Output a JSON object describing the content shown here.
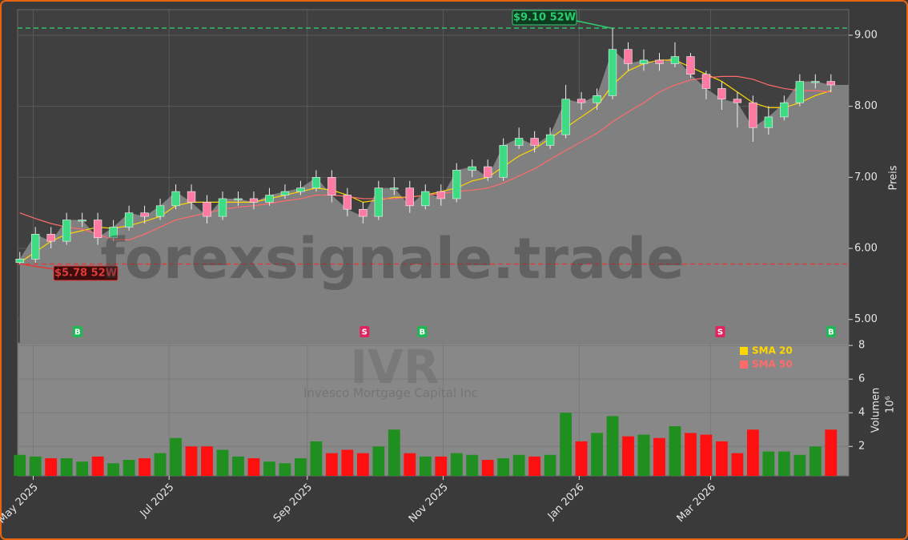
{
  "chart_data": {
    "type": "candlestick",
    "title": "IVR",
    "subtitle": "Invesco Mortgage Capital Inc",
    "watermark": "forexsignale.trade",
    "ylabel": "Preis",
    "x": [
      0,
      1,
      2,
      3,
      4,
      5,
      6,
      7,
      8,
      9,
      10,
      11,
      12,
      13,
      14,
      15,
      16,
      17,
      18,
      19,
      20,
      21,
      22,
      23,
      24,
      25,
      26,
      27,
      28,
      29,
      30,
      31,
      32,
      33,
      34,
      35,
      36,
      37,
      38,
      39,
      40,
      41,
      42,
      43,
      44,
      45,
      46,
      47,
      48,
      49,
      50,
      51,
      52
    ],
    "open": [
      5.8,
      5.85,
      6.2,
      6.1,
      6.4,
      6.4,
      6.15,
      6.3,
      6.5,
      6.45,
      6.6,
      6.8,
      6.65,
      6.45,
      6.7,
      6.7,
      6.65,
      6.75,
      6.8,
      6.85,
      7.0,
      6.75,
      6.55,
      6.45,
      6.85,
      6.85,
      6.6,
      6.8,
      6.7,
      7.1,
      7.15,
      7.0,
      7.45,
      7.55,
      7.45,
      7.6,
      8.1,
      8.05,
      8.15,
      8.8,
      8.6,
      8.65,
      8.6,
      8.7,
      8.45,
      8.25,
      8.1,
      8.05,
      7.7,
      7.85,
      8.05,
      8.35,
      8.35
    ],
    "high": [
      5.95,
      6.3,
      6.3,
      6.5,
      6.5,
      6.5,
      6.4,
      6.6,
      6.6,
      6.7,
      6.9,
      6.9,
      6.75,
      6.8,
      6.8,
      6.8,
      6.85,
      6.9,
      6.95,
      7.1,
      7.1,
      6.85,
      6.65,
      6.95,
      7.0,
      6.95,
      6.9,
      6.9,
      7.2,
      7.25,
      7.25,
      7.55,
      7.7,
      7.65,
      7.7,
      8.3,
      8.2,
      8.25,
      9.1,
      8.9,
      8.8,
      8.75,
      8.9,
      8.75,
      8.5,
      8.35,
      8.2,
      8.15,
      8.0,
      8.15,
      8.45,
      8.45,
      8.45
    ],
    "low": [
      5.78,
      5.8,
      6.0,
      6.05,
      6.3,
      6.05,
      6.1,
      6.25,
      6.35,
      6.4,
      6.55,
      6.55,
      6.35,
      6.4,
      6.6,
      6.55,
      6.6,
      6.7,
      6.75,
      6.8,
      6.65,
      6.45,
      6.35,
      6.4,
      6.75,
      6.5,
      6.55,
      6.6,
      6.65,
      7.0,
      6.95,
      6.95,
      7.4,
      7.35,
      7.4,
      7.55,
      7.95,
      7.95,
      8.1,
      8.5,
      8.5,
      8.5,
      8.55,
      8.4,
      8.1,
      7.95,
      7.7,
      7.5,
      7.6,
      7.8,
      8.0,
      8.25,
      8.2
    ],
    "close": [
      5.85,
      6.2,
      6.1,
      6.4,
      6.4,
      6.15,
      6.3,
      6.5,
      6.45,
      6.6,
      6.8,
      6.65,
      6.45,
      6.7,
      6.7,
      6.65,
      6.75,
      6.8,
      6.85,
      7.0,
      6.75,
      6.55,
      6.45,
      6.85,
      6.85,
      6.6,
      6.8,
      6.7,
      7.1,
      7.15,
      7.0,
      7.45,
      7.55,
      7.45,
      7.6,
      8.1,
      8.05,
      8.15,
      8.8,
      8.6,
      8.65,
      8.6,
      8.7,
      8.45,
      8.25,
      8.1,
      8.05,
      7.7,
      7.85,
      8.05,
      8.35,
      8.35,
      8.3
    ],
    "up_color": "#3ddc84",
    "down_color": "#ff7aa2",
    "area_color": "#808080",
    "series": [
      {
        "name": "SMA 20",
        "color": "#ffd700",
        "values": [
          5.8,
          5.95,
          6.1,
          6.2,
          6.25,
          6.3,
          6.28,
          6.32,
          6.38,
          6.45,
          6.6,
          6.65,
          6.65,
          6.65,
          6.65,
          6.65,
          6.7,
          6.75,
          6.8,
          6.85,
          6.82,
          6.75,
          6.65,
          6.68,
          6.72,
          6.72,
          6.75,
          6.8,
          6.85,
          6.95,
          7.0,
          7.15,
          7.3,
          7.4,
          7.55,
          7.7,
          7.85,
          8.0,
          8.3,
          8.5,
          8.6,
          8.65,
          8.65,
          8.55,
          8.45,
          8.35,
          8.2,
          8.05,
          7.98,
          7.98,
          8.05,
          8.15,
          8.22
        ]
      },
      {
        "name": "SMA 50",
        "color": "#ff6b6b",
        "values": [
          6.5,
          6.42,
          6.35,
          6.3,
          6.27,
          6.2,
          6.12,
          6.12,
          6.2,
          6.3,
          6.4,
          6.45,
          6.5,
          6.55,
          6.58,
          6.6,
          6.63,
          6.67,
          6.7,
          6.75,
          6.75,
          6.73,
          6.7,
          6.7,
          6.7,
          6.72,
          6.75,
          6.77,
          6.8,
          6.82,
          6.85,
          6.92,
          7.02,
          7.12,
          7.25,
          7.38,
          7.5,
          7.62,
          7.78,
          7.92,
          8.05,
          8.2,
          8.3,
          8.37,
          8.4,
          8.42,
          8.42,
          8.38,
          8.3,
          8.25,
          8.22,
          8.22,
          8.2
        ]
      }
    ],
    "high_52w": {
      "value": 9.1,
      "label": "$9.10 52W",
      "color": "#2ecc71"
    },
    "low_52w": {
      "value": 5.78,
      "label": "$5.78 52W",
      "color": "#e03a3a"
    },
    "signals": [
      {
        "x": 3.7,
        "label": "B",
        "color": "#1db954"
      },
      {
        "x": 22.1,
        "label": "S",
        "color": "#e0245e"
      },
      {
        "x": 25.8,
        "label": "B",
        "color": "#1db954"
      },
      {
        "x": 44.9,
        "label": "S",
        "color": "#e0245e"
      },
      {
        "x": 52.0,
        "label": "B",
        "color": "#1db954"
      }
    ],
    "xlim": [
      -0.14,
      53.14
    ],
    "xticks": [
      {
        "value": 0.86,
        "label": "May 2025"
      },
      {
        "value": 9.57,
        "label": "Jul 2025"
      },
      {
        "value": 18.43,
        "label": "Sep 2025"
      },
      {
        "value": 27.14,
        "label": "Nov 2025"
      },
      {
        "value": 35.86,
        "label": "Jan 2026"
      },
      {
        "value": 44.29,
        "label": "Mar 2026"
      }
    ],
    "ylim": [
      4.67,
      9.36
    ],
    "yticks": [
      {
        "value": 5,
        "label": "5.00"
      },
      {
        "value": 6,
        "label": "6.00"
      },
      {
        "value": 7,
        "label": "7.00"
      },
      {
        "value": 8,
        "label": "8.00"
      },
      {
        "value": 9,
        "label": "9.00"
      }
    ],
    "grid": true,
    "legend": "upper right",
    "volume": {
      "label": "Volumen",
      "unit": "10⁶",
      "values": [
        1.5,
        1.4,
        1.3,
        1.3,
        1.1,
        1.4,
        1.0,
        1.2,
        1.3,
        1.6,
        2.5,
        2.0,
        2.0,
        1.8,
        1.4,
        1.3,
        1.1,
        1.0,
        1.3,
        2.3,
        1.6,
        1.8,
        1.6,
        2.0,
        3.0,
        1.6,
        1.4,
        1.4,
        1.6,
        1.5,
        1.2,
        1.3,
        1.5,
        1.4,
        1.5,
        4.0,
        2.3,
        2.8,
        3.8,
        2.6,
        2.7,
        2.5,
        3.2,
        2.8,
        2.7,
        2.3,
        1.6,
        3.0,
        1.7,
        1.7,
        1.5,
        2.0,
        3.0
      ],
      "up_color": "#1f8f1f",
      "down_color": "#ff1010",
      "ylim": [
        0.25,
        8.15
      ],
      "yticks": [
        2,
        4,
        6,
        8
      ]
    }
  }
}
